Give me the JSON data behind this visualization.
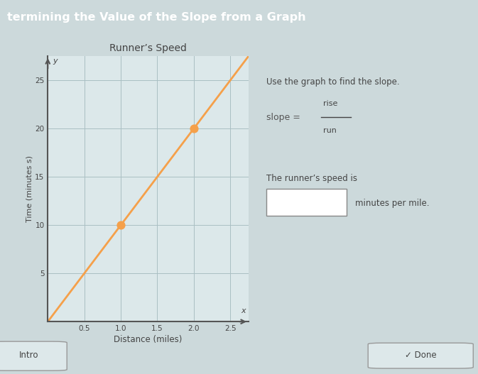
{
  "title_bar_text": "termining the Value of the Slope from a Graph",
  "title_bar_bg": "#4a9b96",
  "title_bar_text_color": "#ffffff",
  "main_bg": "#ccd9db",
  "chart_bg": "#dce8ea",
  "chart_title": "Runner’s Speed",
  "xlabel": "Distance (miles)",
  "ylabel": "Time (minutes s)",
  "x_ticks": [
    0.5,
    1.0,
    1.5,
    2.0,
    2.5
  ],
  "y_ticks": [
    5,
    10,
    15,
    20,
    25
  ],
  "xlim": [
    0,
    2.75
  ],
  "ylim": [
    0,
    27.5
  ],
  "line_x": [
    0,
    2.75
  ],
  "line_y": [
    0,
    27.5
  ],
  "points_x": [
    1.0,
    2.0
  ],
  "points_y": [
    10,
    20
  ],
  "line_color": "#f5a04a",
  "point_color": "#f5a04a",
  "point_size": 60,
  "grid_color": "#aabfc3",
  "right_text1": "Use the graph to find the slope.",
  "right_text2": "slope = ",
  "right_text_rise": "rise",
  "right_text_run": "run",
  "right_text3": "The runner’s speed is",
  "right_text4": "minutes per mile.",
  "done_text": "✓ Done",
  "intro_text": "Intro",
  "axes_color": "#555555",
  "bottom_bar_bg": "#b8cacc",
  "text_color": "#444444",
  "slope_text_color": "#555555"
}
